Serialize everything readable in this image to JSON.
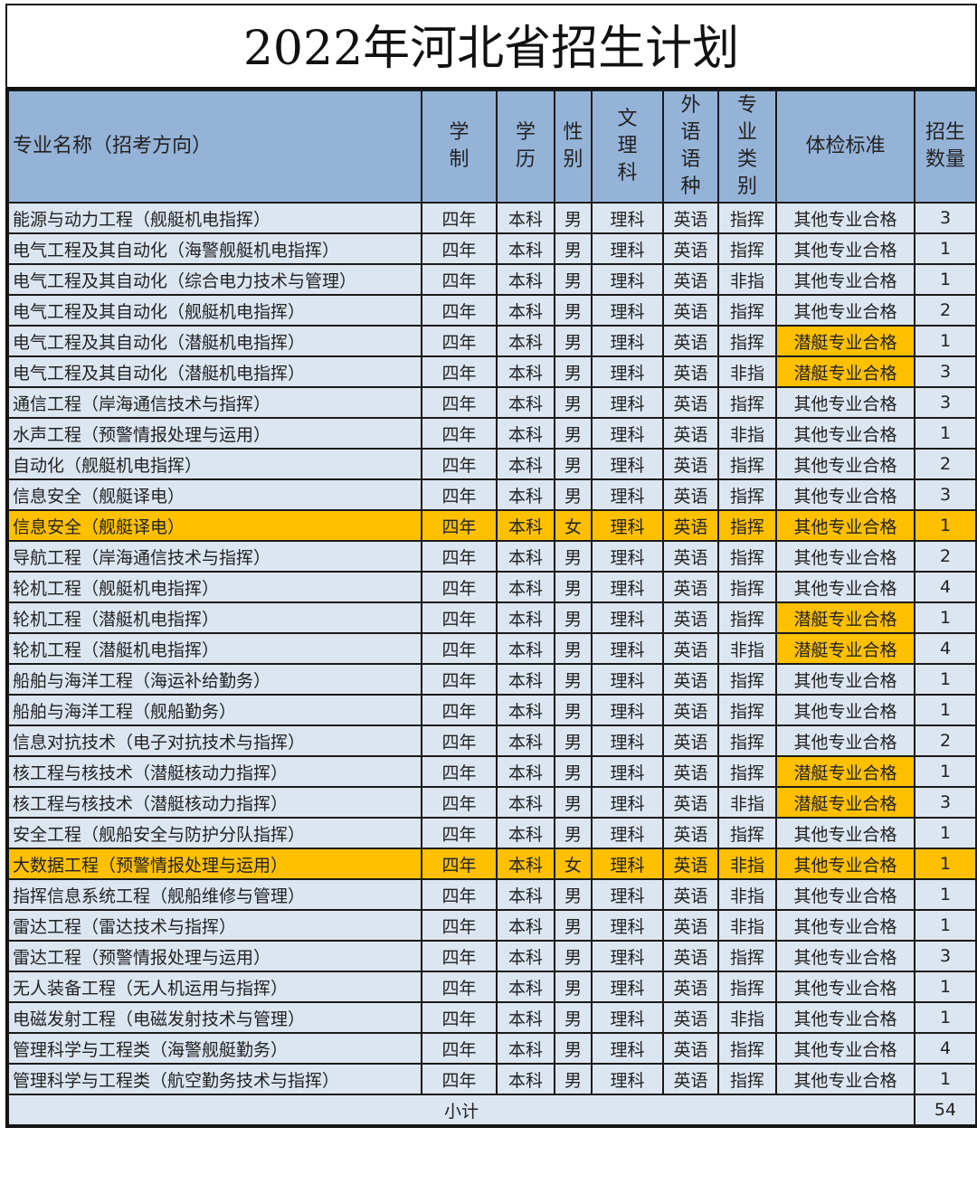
{
  "title": "2022年河北省招生计划",
  "headers": [
    "专业名称（招考方向）",
    "学制",
    "学历",
    "性别",
    "文理科",
    "外语语种",
    "专业类别",
    "体检标准",
    "招生数量"
  ],
  "colors": {
    "header": "#95b3d7",
    "row": "#dce6f1",
    "highlight": "#ffc000"
  },
  "rows": [
    {
      "cells": [
        "能源与动力工程（舰艇机电指挥）",
        "四年",
        "本科",
        "男",
        "理科",
        "英语",
        "指挥",
        "其他专业合格",
        "3"
      ]
    },
    {
      "cells": [
        "电气工程及其自动化（海警舰艇机电指挥）",
        "四年",
        "本科",
        "男",
        "理科",
        "英语",
        "指挥",
        "其他专业合格",
        "1"
      ]
    },
    {
      "cells": [
        "电气工程及其自动化（综合电力技术与管理）",
        "四年",
        "本科",
        "男",
        "理科",
        "英语",
        "非指",
        "其他专业合格",
        "1"
      ]
    },
    {
      "cells": [
        "电气工程及其自动化（舰艇机电指挥）",
        "四年",
        "本科",
        "男",
        "理科",
        "英语",
        "指挥",
        "其他专业合格",
        "2"
      ]
    },
    {
      "cells": [
        "电气工程及其自动化（潜艇机电指挥）",
        "四年",
        "本科",
        "男",
        "理科",
        "英语",
        "指挥",
        "潜艇专业合格",
        "1"
      ],
      "highlight_exam": true
    },
    {
      "cells": [
        "电气工程及其自动化（潜艇机电指挥）",
        "四年",
        "本科",
        "男",
        "理科",
        "英语",
        "非指",
        "潜艇专业合格",
        "3"
      ],
      "highlight_exam": true
    },
    {
      "cells": [
        "通信工程（岸海通信技术与指挥）",
        "四年",
        "本科",
        "男",
        "理科",
        "英语",
        "指挥",
        "其他专业合格",
        "3"
      ]
    },
    {
      "cells": [
        "水声工程（预警情报处理与运用）",
        "四年",
        "本科",
        "男",
        "理科",
        "英语",
        "非指",
        "其他专业合格",
        "1"
      ]
    },
    {
      "cells": [
        "自动化（舰艇机电指挥）",
        "四年",
        "本科",
        "男",
        "理科",
        "英语",
        "指挥",
        "其他专业合格",
        "2"
      ]
    },
    {
      "cells": [
        "信息安全（舰艇译电）",
        "四年",
        "本科",
        "男",
        "理科",
        "英语",
        "指挥",
        "其他专业合格",
        "3"
      ]
    },
    {
      "cells": [
        "信息安全（舰艇译电）",
        "四年",
        "本科",
        "女",
        "理科",
        "英语",
        "指挥",
        "其他专业合格",
        "1"
      ],
      "highlight_row": true
    },
    {
      "cells": [
        "导航工程（岸海通信技术与指挥）",
        "四年",
        "本科",
        "男",
        "理科",
        "英语",
        "指挥",
        "其他专业合格",
        "2"
      ]
    },
    {
      "cells": [
        "轮机工程（舰艇机电指挥）",
        "四年",
        "本科",
        "男",
        "理科",
        "英语",
        "指挥",
        "其他专业合格",
        "4"
      ]
    },
    {
      "cells": [
        "轮机工程（潜艇机电指挥）",
        "四年",
        "本科",
        "男",
        "理科",
        "英语",
        "指挥",
        "潜艇专业合格",
        "1"
      ],
      "highlight_exam": true
    },
    {
      "cells": [
        "轮机工程（潜艇机电指挥）",
        "四年",
        "本科",
        "男",
        "理科",
        "英语",
        "非指",
        "潜艇专业合格",
        "4"
      ],
      "highlight_exam": true
    },
    {
      "cells": [
        "船舶与海洋工程（海运补给勤务）",
        "四年",
        "本科",
        "男",
        "理科",
        "英语",
        "指挥",
        "其他专业合格",
        "1"
      ]
    },
    {
      "cells": [
        "船舶与海洋工程（舰船勤务）",
        "四年",
        "本科",
        "男",
        "理科",
        "英语",
        "指挥",
        "其他专业合格",
        "1"
      ]
    },
    {
      "cells": [
        "信息对抗技术（电子对抗技术与指挥）",
        "四年",
        "本科",
        "男",
        "理科",
        "英语",
        "指挥",
        "其他专业合格",
        "2"
      ]
    },
    {
      "cells": [
        "核工程与核技术（潜艇核动力指挥）",
        "四年",
        "本科",
        "男",
        "理科",
        "英语",
        "指挥",
        "潜艇专业合格",
        "1"
      ],
      "highlight_exam": true
    },
    {
      "cells": [
        "核工程与核技术（潜艇核动力指挥）",
        "四年",
        "本科",
        "男",
        "理科",
        "英语",
        "非指",
        "潜艇专业合格",
        "3"
      ],
      "highlight_exam": true
    },
    {
      "cells": [
        "安全工程（舰船安全与防护分队指挥）",
        "四年",
        "本科",
        "男",
        "理科",
        "英语",
        "指挥",
        "其他专业合格",
        "1"
      ]
    },
    {
      "cells": [
        "大数据工程（预警情报处理与运用）",
        "四年",
        "本科",
        "女",
        "理科",
        "英语",
        "非指",
        "其他专业合格",
        "1"
      ],
      "highlight_row": true
    },
    {
      "cells": [
        "指挥信息系统工程（舰船维修与管理）",
        "四年",
        "本科",
        "男",
        "理科",
        "英语",
        "非指",
        "其他专业合格",
        "1"
      ]
    },
    {
      "cells": [
        "雷达工程（雷达技术与指挥）",
        "四年",
        "本科",
        "男",
        "理科",
        "英语",
        "非指",
        "其他专业合格",
        "1"
      ]
    },
    {
      "cells": [
        "雷达工程（预警情报处理与运用）",
        "四年",
        "本科",
        "男",
        "理科",
        "英语",
        "指挥",
        "其他专业合格",
        "3"
      ]
    },
    {
      "cells": [
        "无人装备工程（无人机运用与指挥）",
        "四年",
        "本科",
        "男",
        "理科",
        "英语",
        "指挥",
        "其他专业合格",
        "1"
      ]
    },
    {
      "cells": [
        "电磁发射工程（电磁发射技术与管理）",
        "四年",
        "本科",
        "男",
        "理科",
        "英语",
        "非指",
        "其他专业合格",
        "1"
      ]
    },
    {
      "cells": [
        "管理科学与工程类（海警舰艇勤务）",
        "四年",
        "本科",
        "男",
        "理科",
        "英语",
        "指挥",
        "其他专业合格",
        "4"
      ]
    },
    {
      "cells": [
        "管理科学与工程类（航空勤务技术与指挥）",
        "四年",
        "本科",
        "男",
        "理科",
        "英语",
        "指挥",
        "其他专业合格",
        "1"
      ]
    }
  ],
  "total": {
    "label": "小计",
    "value": "54"
  }
}
